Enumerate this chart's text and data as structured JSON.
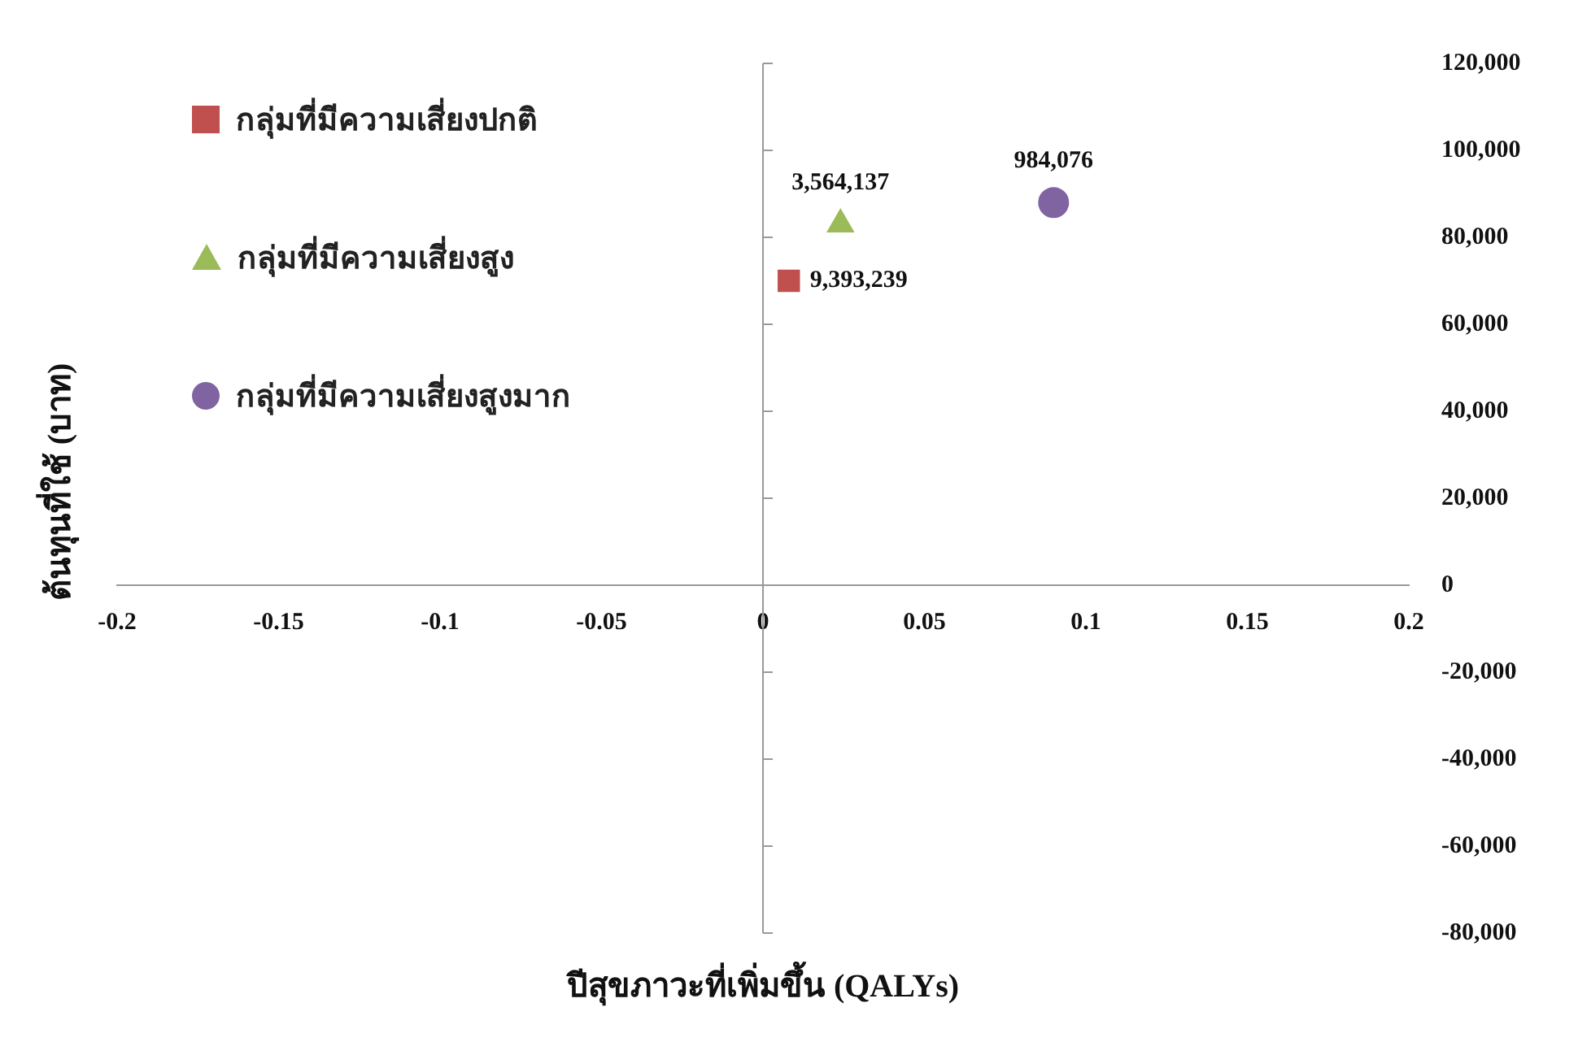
{
  "chart_data": {
    "type": "scatter",
    "xlabel": "ปีสุขภาวะที่เพิ่มขึ้น (QALYs)",
    "ylabel": "ต้นทุนที่ใช้ (บาท)",
    "xlim": [
      -0.2,
      0.2
    ],
    "xticks": [
      -0.2,
      -0.15,
      -0.1,
      -0.05,
      0,
      0.05,
      0.1,
      0.15,
      0.2
    ],
    "ylim": [
      -80000,
      120000
    ],
    "yticks": [
      {
        "value": -80000,
        "label": "-80,000"
      },
      {
        "value": -60000,
        "label": "-60,000"
      },
      {
        "value": -40000,
        "label": "-40,000"
      },
      {
        "value": -20000,
        "label": "-20,000"
      },
      {
        "value": 0,
        "label": "0"
      },
      {
        "value": 20000,
        "label": "20,000"
      },
      {
        "value": 40000,
        "label": "40,000"
      },
      {
        "value": 60000,
        "label": "60,000"
      },
      {
        "value": 80000,
        "label": "80,000"
      },
      {
        "value": 100000,
        "label": "100,000"
      },
      {
        "value": 120000,
        "label": "120,000"
      }
    ],
    "legend": "top left",
    "annotations": [
      {
        "text": "9,393,239",
        "x": 0.008,
        "y": 70000
      },
      {
        "text": "3,564,137",
        "x": 0.024,
        "y": 83000
      },
      {
        "text": "984,076",
        "x": 0.09,
        "y": 88000
      }
    ],
    "series": [
      {
        "name": "กลุ่มที่มีความเสี่ยงปกติ",
        "color": "#c0504d",
        "marker": "square",
        "x": [
          0.008
        ],
        "values": [
          70000
        ]
      },
      {
        "name": "กลุ่มที่มีความเสี่ยงสูง",
        "color": "#9bbb59",
        "marker": "triangle",
        "x": [
          0.024
        ],
        "values": [
          83000
        ]
      },
      {
        "name": "กลุ่มที่มีความเสี่ยงสูงมาก",
        "color": "#8064a2",
        "marker": "circle",
        "x": [
          0.09
        ],
        "values": [
          88000
        ]
      }
    ]
  }
}
